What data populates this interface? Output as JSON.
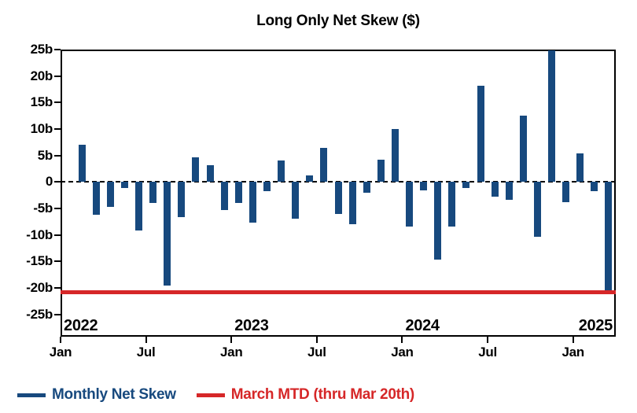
{
  "chart_data": {
    "type": "bar",
    "title": "Long Only Net Skew ($)",
    "unit": "billions USD",
    "bar_color": "#17497E",
    "mtd_line_color": "#D62728",
    "categories": [
      "Feb 2022",
      "Mar 2022",
      "Apr 2022",
      "May 2022",
      "Jun 2022",
      "Jul 2022",
      "Aug 2022",
      "Sep 2022",
      "Oct 2022",
      "Nov 2022",
      "Dec 2022",
      "Jan 2023",
      "Feb 2023",
      "Mar 2023",
      "Apr 2023",
      "May 2023",
      "Jun 2023",
      "Jul 2023",
      "Aug 2023",
      "Sep 2023",
      "Oct 2023",
      "Nov 2023",
      "Dec 2023",
      "Jan 2024",
      "Feb 2024",
      "Mar 2024",
      "Apr 2024",
      "May 2024",
      "Jun 2024",
      "Jul 2024",
      "Aug 2024",
      "Sep 2024",
      "Oct 2024",
      "Nov 2024",
      "Dec 2024",
      "Jan 2025",
      "Feb 2025",
      "Mar 2025"
    ],
    "values": [
      7.0,
      -6.2,
      -4.7,
      -1.1,
      -9.1,
      -3.9,
      -19.5,
      -6.6,
      4.6,
      3.1,
      -5.3,
      -4.0,
      -7.6,
      -1.7,
      4.1,
      -6.9,
      1.3,
      6.4,
      -6.1,
      -7.9,
      -2.1,
      4.2,
      10.0,
      -8.4,
      -1.6,
      -14.7,
      -8.4,
      -1.1,
      18.2,
      -2.8,
      -3.3,
      12.6,
      -10.3,
      24.8,
      -3.8,
      5.4,
      -1.8,
      -20.8
    ],
    "march_mtd_value": -20.8,
    "x_axis_months_total": 39,
    "x_start": "Jan 2022",
    "ylim": [
      -29.2,
      25
    ],
    "yticks": [
      {
        "value": 25,
        "label": "25b"
      },
      {
        "value": 20,
        "label": "20b"
      },
      {
        "value": 15,
        "label": "15b"
      },
      {
        "value": 10,
        "label": "10b"
      },
      {
        "value": 5,
        "label": "5b"
      },
      {
        "value": 0,
        "label": "0"
      },
      {
        "value": -5,
        "label": "-5b"
      },
      {
        "value": -10,
        "label": "-10b"
      },
      {
        "value": -15,
        "label": "-15b"
      },
      {
        "value": -20,
        "label": "-20b"
      },
      {
        "value": -25,
        "label": "-25b"
      }
    ],
    "xticks": [
      {
        "month_index": 0,
        "label": "Jan"
      },
      {
        "month_index": 6,
        "label": "Jul"
      },
      {
        "month_index": 12,
        "label": "Jan"
      },
      {
        "month_index": 18,
        "label": "Jul"
      },
      {
        "month_index": 24,
        "label": "Jan"
      },
      {
        "month_index": 30,
        "label": "Jul"
      },
      {
        "month_index": 36,
        "label": "Jan"
      }
    ],
    "year_labels": [
      {
        "label": "2022",
        "month_index": 0,
        "align": "left"
      },
      {
        "label": "2023",
        "month_index": 12,
        "align": "left"
      },
      {
        "label": "2024",
        "month_index": 24,
        "align": "left"
      },
      {
        "label": "2025",
        "month_index": 36,
        "align": "right"
      }
    ],
    "zero_line": {
      "style": "dashed",
      "color": "#000000"
    },
    "legend": [
      {
        "label": "Monthly Net Skew",
        "color": "#17497E"
      },
      {
        "label": "March MTD (thru Mar 20th)",
        "color": "#D62728"
      }
    ],
    "legend_position": "bottom-left",
    "grid": false
  }
}
